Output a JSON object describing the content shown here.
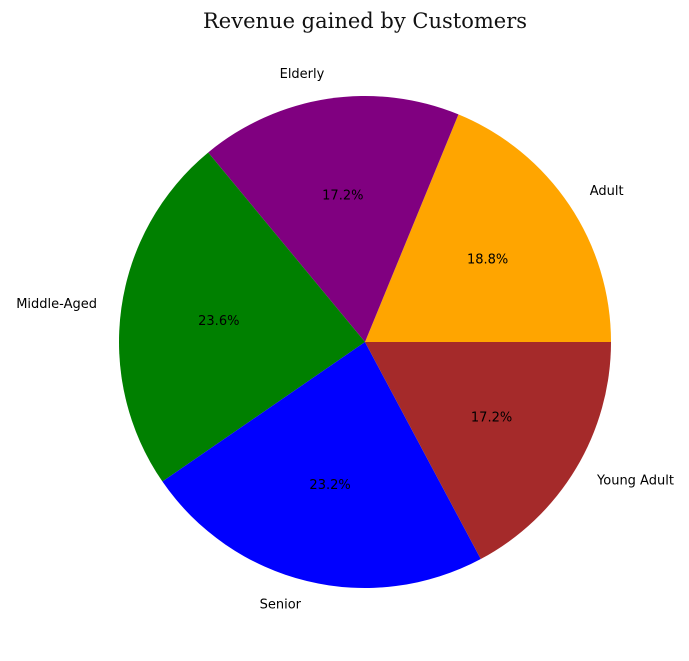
{
  "chart_data": {
    "type": "pie",
    "title": "Revenue gained by Customers",
    "categories": [
      "Adult",
      "Elderly",
      "Middle-Aged",
      "Senior",
      "Young Adult"
    ],
    "values": [
      18.8,
      17.2,
      23.6,
      23.2,
      17.2
    ],
    "value_labels": [
      "18.8%",
      "17.2%",
      "23.6%",
      "23.2%",
      "17.2%"
    ],
    "colors": [
      "#ffa500",
      "#800080",
      "#008000",
      "#0000ff",
      "#a52a2a"
    ],
    "start_angle_deg": 0,
    "direction": "counterclockwise"
  }
}
